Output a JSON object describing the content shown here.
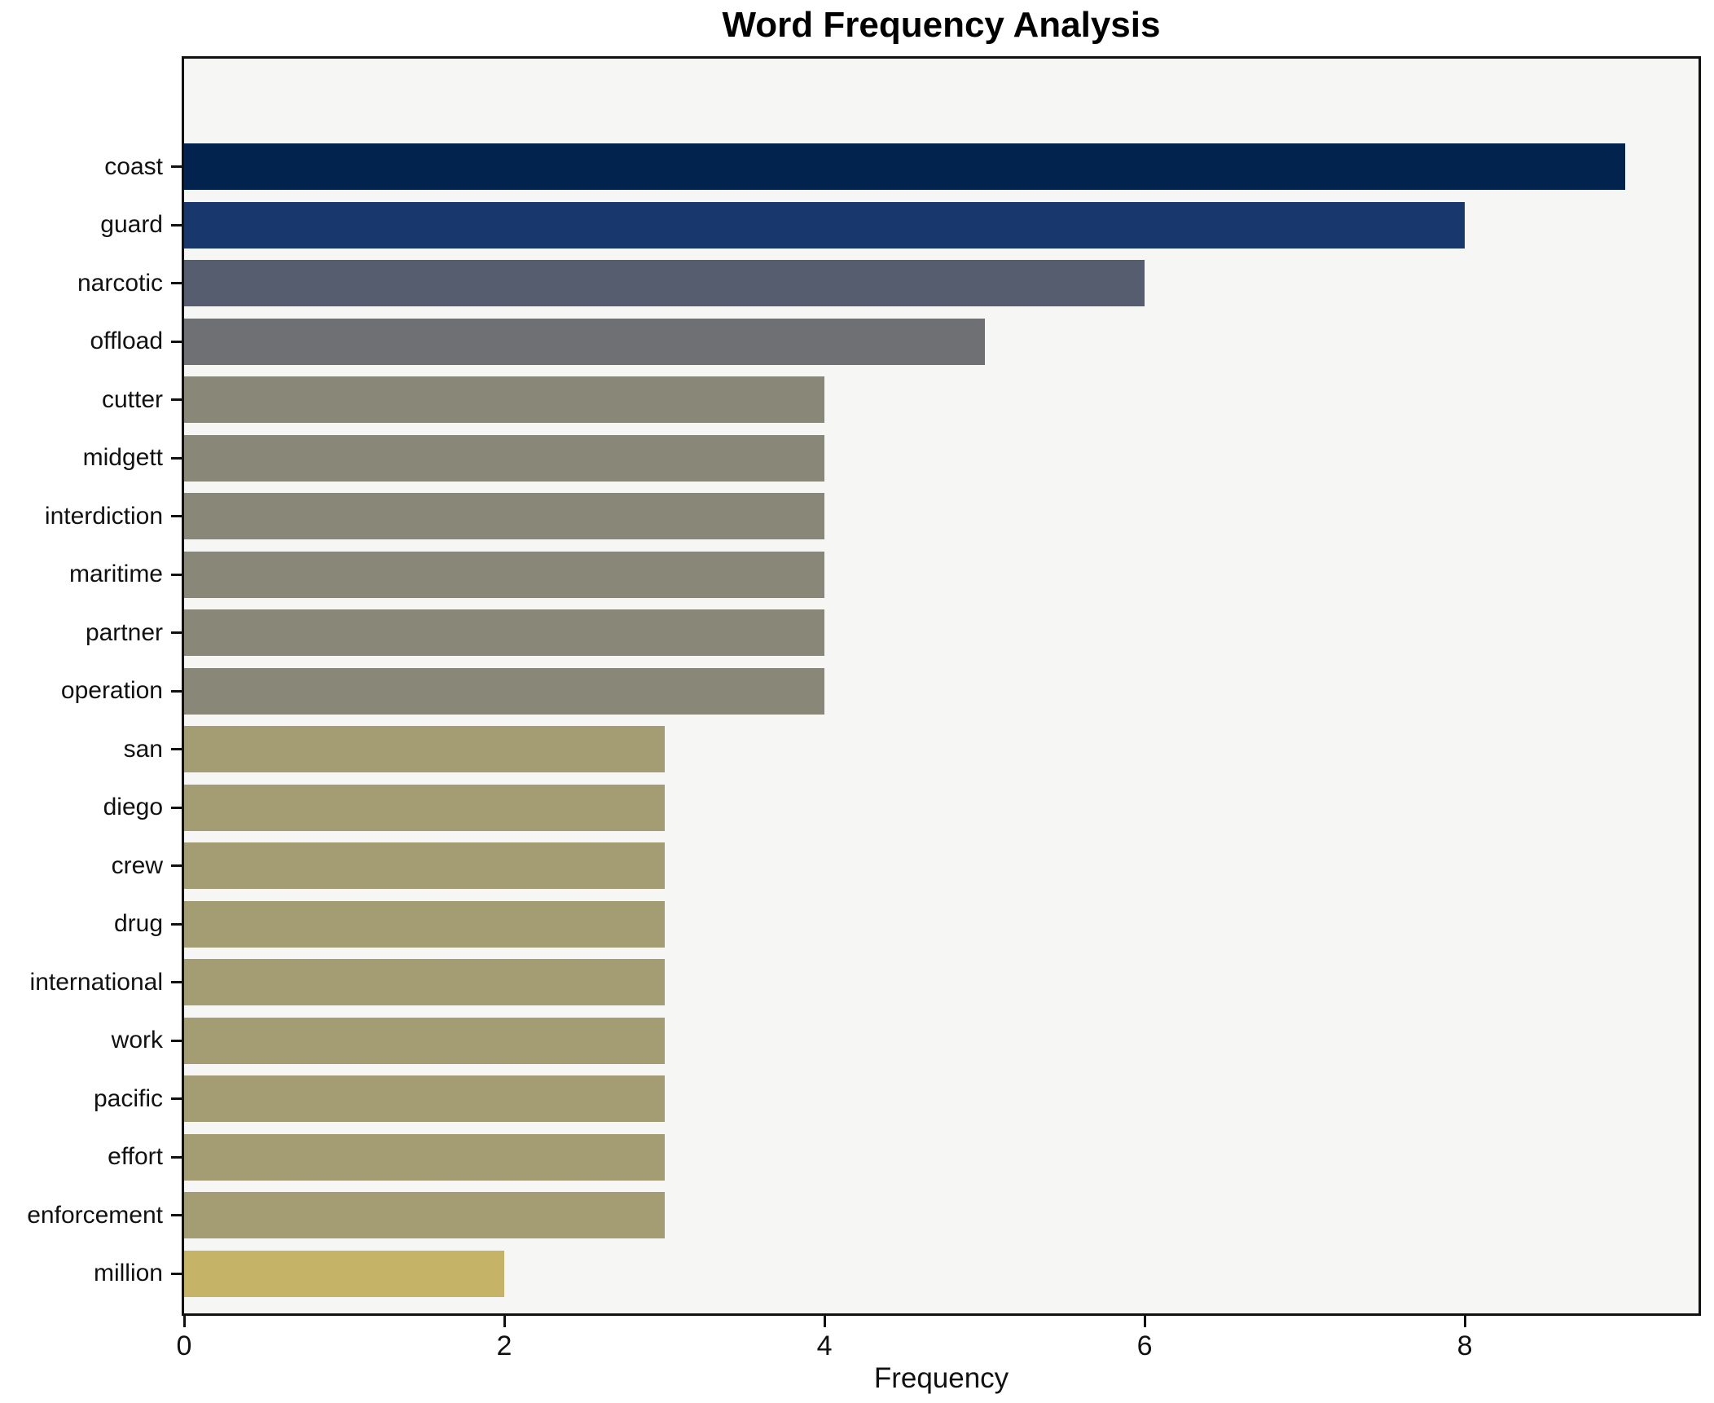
{
  "chart_data": {
    "type": "bar",
    "orientation": "horizontal",
    "title": "Word Frequency Analysis",
    "xlabel": "Frequency",
    "ylabel": "",
    "categories": [
      "coast",
      "guard",
      "narcotic",
      "offload",
      "cutter",
      "midgett",
      "interdiction",
      "maritime",
      "partner",
      "operation",
      "san",
      "diego",
      "crew",
      "drug",
      "international",
      "work",
      "pacific",
      "effort",
      "enforcement",
      "million"
    ],
    "values": [
      9,
      8,
      6,
      5,
      4,
      4,
      4,
      4,
      4,
      4,
      3,
      3,
      3,
      3,
      3,
      3,
      3,
      3,
      3,
      2
    ],
    "bar_colors": [
      "#01234e",
      "#17376d",
      "#565d6e",
      "#6f7073",
      "#898778",
      "#898778",
      "#898778",
      "#898778",
      "#898778",
      "#898778",
      "#a49d74",
      "#a49d74",
      "#a49d74",
      "#a49d74",
      "#a49d74",
      "#a49d74",
      "#a49d74",
      "#a49d74",
      "#a49d74",
      "#c5b368"
    ],
    "xlim": [
      0,
      9.46
    ],
    "xticks": [
      0,
      2,
      4,
      6,
      8
    ],
    "grid": false,
    "legend": "none",
    "plot_background": "#f6f6f4",
    "figure_background": "#ffffff",
    "spine_color": "#111111"
  }
}
